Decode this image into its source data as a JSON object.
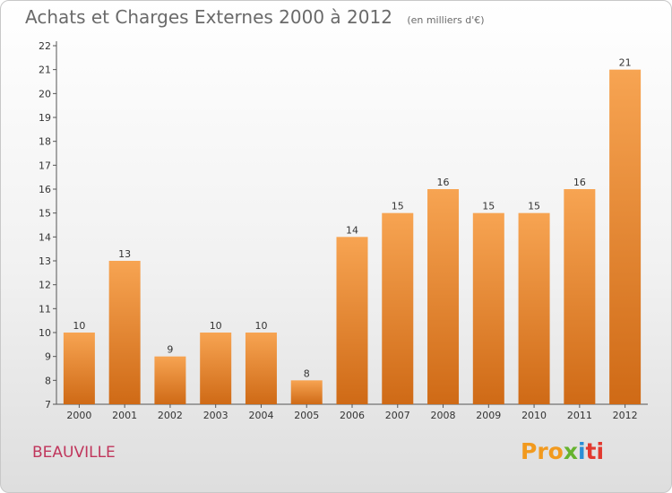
{
  "header": {
    "title": "Achats et Charges Externes 2000 à 2012",
    "subtitle": "(en milliers d'€)"
  },
  "footer": {
    "commune": "BEAUVILLE",
    "logo": "Proxiti",
    "logo_parts": [
      "Pro",
      "x",
      "i",
      "ti"
    ]
  },
  "colors": {
    "bar_top": "#f7a452",
    "bar_bottom": "#cf6a16",
    "axis": "#555555",
    "commune_text": "#c0365c"
  },
  "chart_data": {
    "type": "bar",
    "title": "Achats et Charges Externes 2000 à 2012",
    "subtitle": "(en milliers d'€)",
    "categories": [
      "2000",
      "2001",
      "2002",
      "2003",
      "2004",
      "2005",
      "2006",
      "2007",
      "2008",
      "2009",
      "2010",
      "2011",
      "2012"
    ],
    "values": [
      10,
      13,
      9,
      10,
      10,
      8,
      14,
      15,
      16,
      15,
      15,
      16,
      21
    ],
    "ylim": [
      7,
      22
    ],
    "yticks": [
      7,
      8,
      9,
      10,
      11,
      12,
      13,
      14,
      15,
      16,
      17,
      18,
      19,
      20,
      21,
      22
    ],
    "xlabel": "",
    "ylabel": "",
    "grid": false,
    "legend": "none"
  }
}
